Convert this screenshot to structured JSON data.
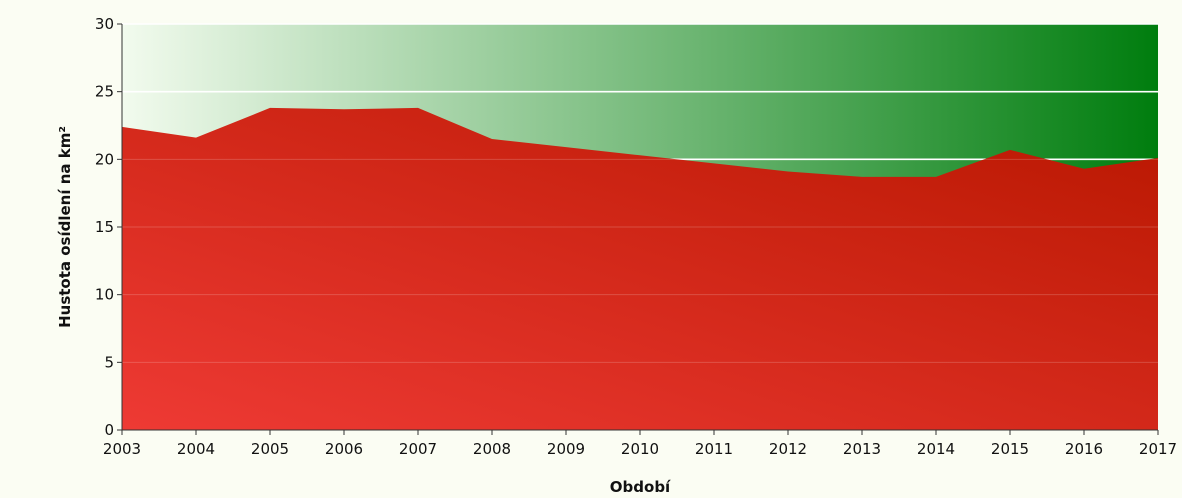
{
  "chart_data": {
    "type": "area",
    "xlabel": "Období",
    "ylabel": "Hustota osídlení na km²",
    "x": [
      "2003",
      "2004",
      "2005",
      "2006",
      "2007",
      "2008",
      "2009",
      "2010",
      "2011",
      "2012",
      "2013",
      "2014",
      "2015",
      "2016",
      "2017"
    ],
    "values": [
      22.4,
      21.6,
      23.8,
      23.7,
      23.8,
      21.5,
      20.9,
      20.3,
      19.7,
      19.1,
      18.7,
      18.7,
      20.7,
      19.3,
      20.1
    ],
    "ylim": [
      0,
      30
    ],
    "yticks": [
      0,
      5,
      10,
      15,
      20,
      25,
      30
    ],
    "grid": true,
    "colors": {
      "area_light": "#ee3a34",
      "area_dark": "#b81700",
      "background_light": "#f2fbee",
      "background_dark": "#007d0e",
      "grid": "#ffffff",
      "axis": "#333333"
    }
  }
}
